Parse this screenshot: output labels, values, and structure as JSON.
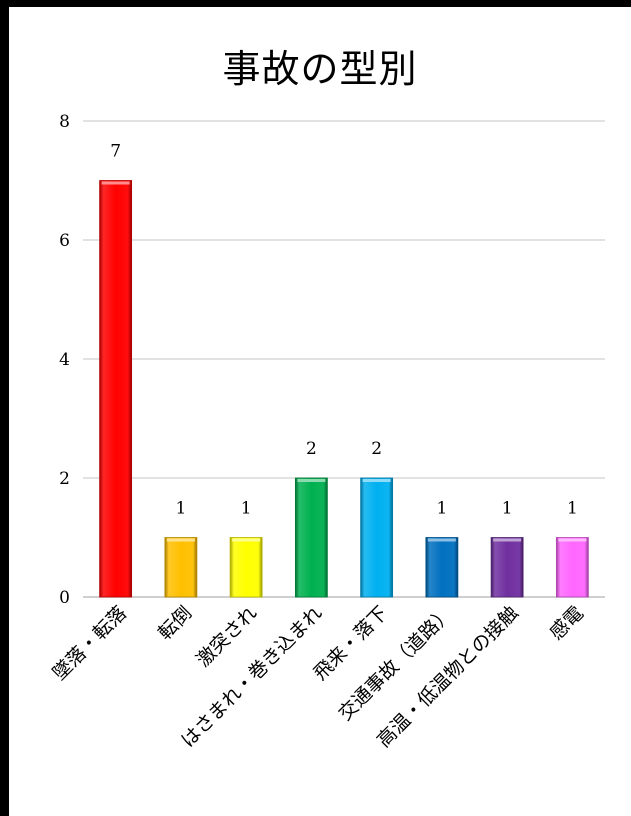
{
  "chart_data": {
    "type": "bar",
    "title": "事故の型別",
    "xlabel": "",
    "ylabel": "",
    "categories": [
      "墜落・転落",
      "転倒",
      "激突され",
      "はさまれ・巻き込まれ",
      "飛来・落下",
      "交通事故（道路）",
      "高温・低温物との接触",
      "感電"
    ],
    "values": [
      7,
      1,
      1,
      2,
      2,
      1,
      1,
      1
    ],
    "colors": [
      "#ff0000",
      "#ffc000",
      "#ffff00",
      "#00b050",
      "#00b0f0",
      "#0070c0",
      "#7030a0",
      "#ff66ff"
    ],
    "ylim": [
      0,
      8
    ],
    "yticks": [
      "0",
      "2",
      "4",
      "6",
      "8"
    ],
    "grid": true,
    "data_labels": true,
    "legend": "none"
  }
}
